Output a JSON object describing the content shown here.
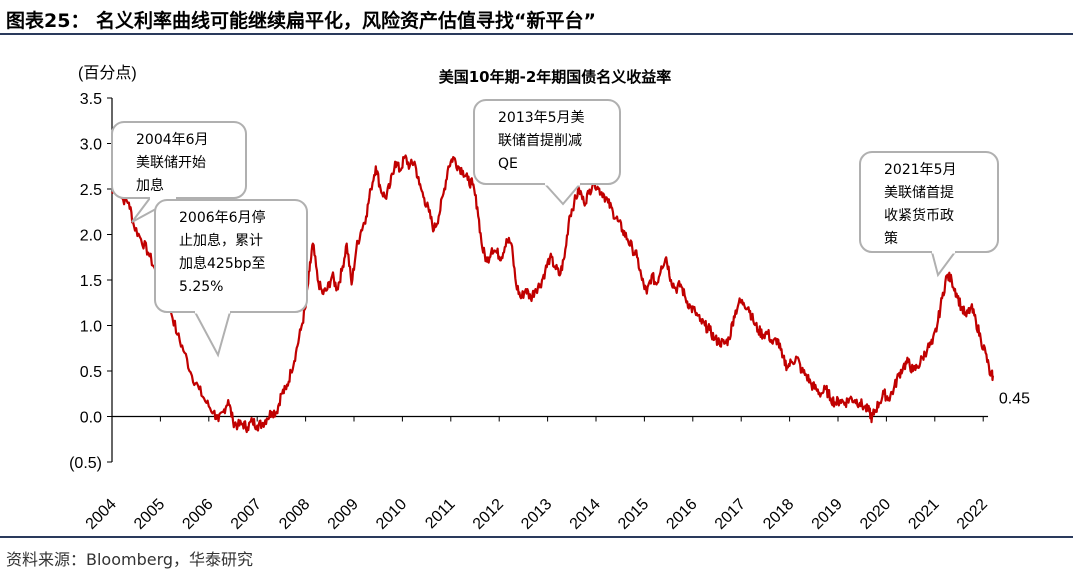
{
  "figure_title": "图表25： 名义利率曲线可能继续扁平化，风险资产估值寻找“新平台”",
  "source": "资料来源：Bloomberg，华泰研究",
  "chart_data": {
    "type": "line",
    "title": "美国10年期-2年期国债名义收益率",
    "ylabel": "(百分点)",
    "xlabel": "",
    "ylim": [
      -0.5,
      3.5
    ],
    "x_range": [
      2004.0,
      2022.4
    ],
    "y_ticks": [
      3.5,
      3.0,
      2.5,
      2.0,
      1.5,
      1.0,
      0.5,
      0.0,
      -0.5
    ],
    "y_tick_labels": [
      "3.5",
      "3.0",
      "2.5",
      "2.0",
      "1.5",
      "1.0",
      "0.5",
      "0.0",
      "(0.5)"
    ],
    "x_tick_labels": [
      "2004",
      "2005",
      "2006",
      "2007",
      "2008",
      "2009",
      "2010",
      "2011",
      "2012",
      "2013",
      "2014",
      "2015",
      "2016",
      "2017",
      "2018",
      "2019",
      "2020",
      "2021",
      "2022"
    ],
    "color": "#c00000",
    "end_label": "0.45",
    "series": [
      {
        "name": "10Y-2Y spread",
        "points": [
          [
            2004.0,
            2.45
          ],
          [
            2004.1,
            2.55
          ],
          [
            2004.2,
            2.4
          ],
          [
            2004.35,
            2.35
          ],
          [
            2004.45,
            2.1
          ],
          [
            2004.6,
            1.95
          ],
          [
            2004.75,
            1.8
          ],
          [
            2004.9,
            1.6
          ],
          [
            2005.05,
            1.4
          ],
          [
            2005.2,
            1.2
          ],
          [
            2005.35,
            0.9
          ],
          [
            2005.5,
            0.7
          ],
          [
            2005.65,
            0.45
          ],
          [
            2005.8,
            0.3
          ],
          [
            2005.95,
            0.15
          ],
          [
            2006.1,
            0.05
          ],
          [
            2006.2,
            -0.05
          ],
          [
            2006.3,
            0.05
          ],
          [
            2006.4,
            0.18
          ],
          [
            2006.5,
            -0.05
          ],
          [
            2006.6,
            -0.1
          ],
          [
            2006.7,
            -0.08
          ],
          [
            2006.8,
            -0.12
          ],
          [
            2006.9,
            -0.05
          ],
          [
            2007.0,
            -0.1
          ],
          [
            2007.1,
            -0.08
          ],
          [
            2007.2,
            -0.02
          ],
          [
            2007.3,
            0.05
          ],
          [
            2007.4,
            0.05
          ],
          [
            2007.5,
            0.25
          ],
          [
            2007.6,
            0.3
          ],
          [
            2007.7,
            0.5
          ],
          [
            2007.8,
            0.7
          ],
          [
            2007.9,
            0.95
          ],
          [
            2008.0,
            1.2
          ],
          [
            2008.08,
            1.6
          ],
          [
            2008.15,
            1.9
          ],
          [
            2008.25,
            1.5
          ],
          [
            2008.35,
            1.35
          ],
          [
            2008.45,
            1.4
          ],
          [
            2008.55,
            1.55
          ],
          [
            2008.65,
            1.4
          ],
          [
            2008.75,
            1.6
          ],
          [
            2008.85,
            1.9
          ],
          [
            2008.95,
            1.45
          ],
          [
            2009.05,
            1.85
          ],
          [
            2009.15,
            2.05
          ],
          [
            2009.25,
            2.2
          ],
          [
            2009.35,
            2.5
          ],
          [
            2009.45,
            2.75
          ],
          [
            2009.55,
            2.5
          ],
          [
            2009.65,
            2.4
          ],
          [
            2009.75,
            2.55
          ],
          [
            2009.85,
            2.8
          ],
          [
            2009.95,
            2.7
          ],
          [
            2010.05,
            2.85
          ],
          [
            2010.15,
            2.75
          ],
          [
            2010.25,
            2.8
          ],
          [
            2010.35,
            2.55
          ],
          [
            2010.45,
            2.4
          ],
          [
            2010.55,
            2.25
          ],
          [
            2010.65,
            2.05
          ],
          [
            2010.75,
            2.2
          ],
          [
            2010.85,
            2.45
          ],
          [
            2010.95,
            2.75
          ],
          [
            2011.05,
            2.85
          ],
          [
            2011.15,
            2.75
          ],
          [
            2011.25,
            2.7
          ],
          [
            2011.35,
            2.6
          ],
          [
            2011.45,
            2.55
          ],
          [
            2011.55,
            2.3
          ],
          [
            2011.65,
            1.85
          ],
          [
            2011.75,
            1.7
          ],
          [
            2011.85,
            1.85
          ],
          [
            2011.95,
            1.8
          ],
          [
            2012.05,
            1.75
          ],
          [
            2012.15,
            1.95
          ],
          [
            2012.25,
            1.9
          ],
          [
            2012.35,
            1.45
          ],
          [
            2012.45,
            1.3
          ],
          [
            2012.55,
            1.4
          ],
          [
            2012.65,
            1.3
          ],
          [
            2012.75,
            1.4
          ],
          [
            2012.85,
            1.45
          ],
          [
            2012.95,
            1.6
          ],
          [
            2013.05,
            1.75
          ],
          [
            2013.15,
            1.65
          ],
          [
            2013.25,
            1.55
          ],
          [
            2013.35,
            1.75
          ],
          [
            2013.45,
            2.2
          ],
          [
            2013.55,
            2.35
          ],
          [
            2013.65,
            2.5
          ],
          [
            2013.75,
            2.35
          ],
          [
            2013.85,
            2.45
          ],
          [
            2013.95,
            2.6
          ],
          [
            2014.05,
            2.5
          ],
          [
            2014.15,
            2.45
          ],
          [
            2014.25,
            2.35
          ],
          [
            2014.35,
            2.25
          ],
          [
            2014.45,
            2.15
          ],
          [
            2014.55,
            2.05
          ],
          [
            2014.65,
            1.95
          ],
          [
            2014.75,
            1.85
          ],
          [
            2014.85,
            1.75
          ],
          [
            2014.95,
            1.5
          ],
          [
            2015.05,
            1.35
          ],
          [
            2015.15,
            1.55
          ],
          [
            2015.25,
            1.45
          ],
          [
            2015.35,
            1.65
          ],
          [
            2015.45,
            1.75
          ],
          [
            2015.55,
            1.5
          ],
          [
            2015.65,
            1.4
          ],
          [
            2015.75,
            1.45
          ],
          [
            2015.85,
            1.3
          ],
          [
            2015.95,
            1.2
          ],
          [
            2016.05,
            1.15
          ],
          [
            2016.15,
            1.05
          ],
          [
            2016.25,
            1.0
          ],
          [
            2016.35,
            0.95
          ],
          [
            2016.45,
            0.85
          ],
          [
            2016.55,
            0.82
          ],
          [
            2016.65,
            0.8
          ],
          [
            2016.75,
            0.85
          ],
          [
            2016.85,
            1.1
          ],
          [
            2016.95,
            1.25
          ],
          [
            2017.05,
            1.25
          ],
          [
            2017.15,
            1.2
          ],
          [
            2017.25,
            1.05
          ],
          [
            2017.35,
            0.95
          ],
          [
            2017.45,
            0.9
          ],
          [
            2017.55,
            0.92
          ],
          [
            2017.65,
            0.8
          ],
          [
            2017.75,
            0.85
          ],
          [
            2017.85,
            0.65
          ],
          [
            2017.95,
            0.55
          ],
          [
            2018.05,
            0.6
          ],
          [
            2018.15,
            0.65
          ],
          [
            2018.25,
            0.5
          ],
          [
            2018.35,
            0.45
          ],
          [
            2018.45,
            0.35
          ],
          [
            2018.55,
            0.3
          ],
          [
            2018.65,
            0.25
          ],
          [
            2018.75,
            0.3
          ],
          [
            2018.85,
            0.2
          ],
          [
            2018.95,
            0.15
          ],
          [
            2019.05,
            0.18
          ],
          [
            2019.15,
            0.15
          ],
          [
            2019.25,
            0.2
          ],
          [
            2019.35,
            0.18
          ],
          [
            2019.45,
            0.15
          ],
          [
            2019.55,
            0.1
          ],
          [
            2019.65,
            0.05
          ],
          [
            2019.7,
            -0.02
          ],
          [
            2019.75,
            0.05
          ],
          [
            2019.85,
            0.15
          ],
          [
            2019.95,
            0.25
          ],
          [
            2020.05,
            0.2
          ],
          [
            2020.15,
            0.3
          ],
          [
            2020.25,
            0.45
          ],
          [
            2020.35,
            0.55
          ],
          [
            2020.45,
            0.6
          ],
          [
            2020.55,
            0.5
          ],
          [
            2020.65,
            0.55
          ],
          [
            2020.75,
            0.65
          ],
          [
            2020.85,
            0.75
          ],
          [
            2020.95,
            0.8
          ],
          [
            2021.05,
            1.0
          ],
          [
            2021.15,
            1.3
          ],
          [
            2021.25,
            1.55
          ],
          [
            2021.35,
            1.5
          ],
          [
            2021.45,
            1.35
          ],
          [
            2021.55,
            1.2
          ],
          [
            2021.65,
            1.1
          ],
          [
            2021.75,
            1.2
          ],
          [
            2021.85,
            1.05
          ],
          [
            2021.95,
            0.85
          ],
          [
            2022.05,
            0.7
          ],
          [
            2022.15,
            0.45
          ],
          [
            2022.2,
            0.45
          ]
        ]
      }
    ],
    "annotations": [
      {
        "name": "ann-2004",
        "lines": [
          "2004年6月",
          "美联储开始",
          "加息"
        ]
      },
      {
        "name": "ann-2006",
        "lines": [
          "2006年6月停",
          "止加息，累计",
          "加息425bp至",
          "5.25%"
        ]
      },
      {
        "name": "ann-2013",
        "lines": [
          "2013年5月美",
          "联储首提削减",
          "QE"
        ]
      },
      {
        "name": "ann-2021",
        "lines": [
          "2021年5月",
          "美联储首提",
          "收紧货币政",
          "策"
        ]
      }
    ]
  }
}
